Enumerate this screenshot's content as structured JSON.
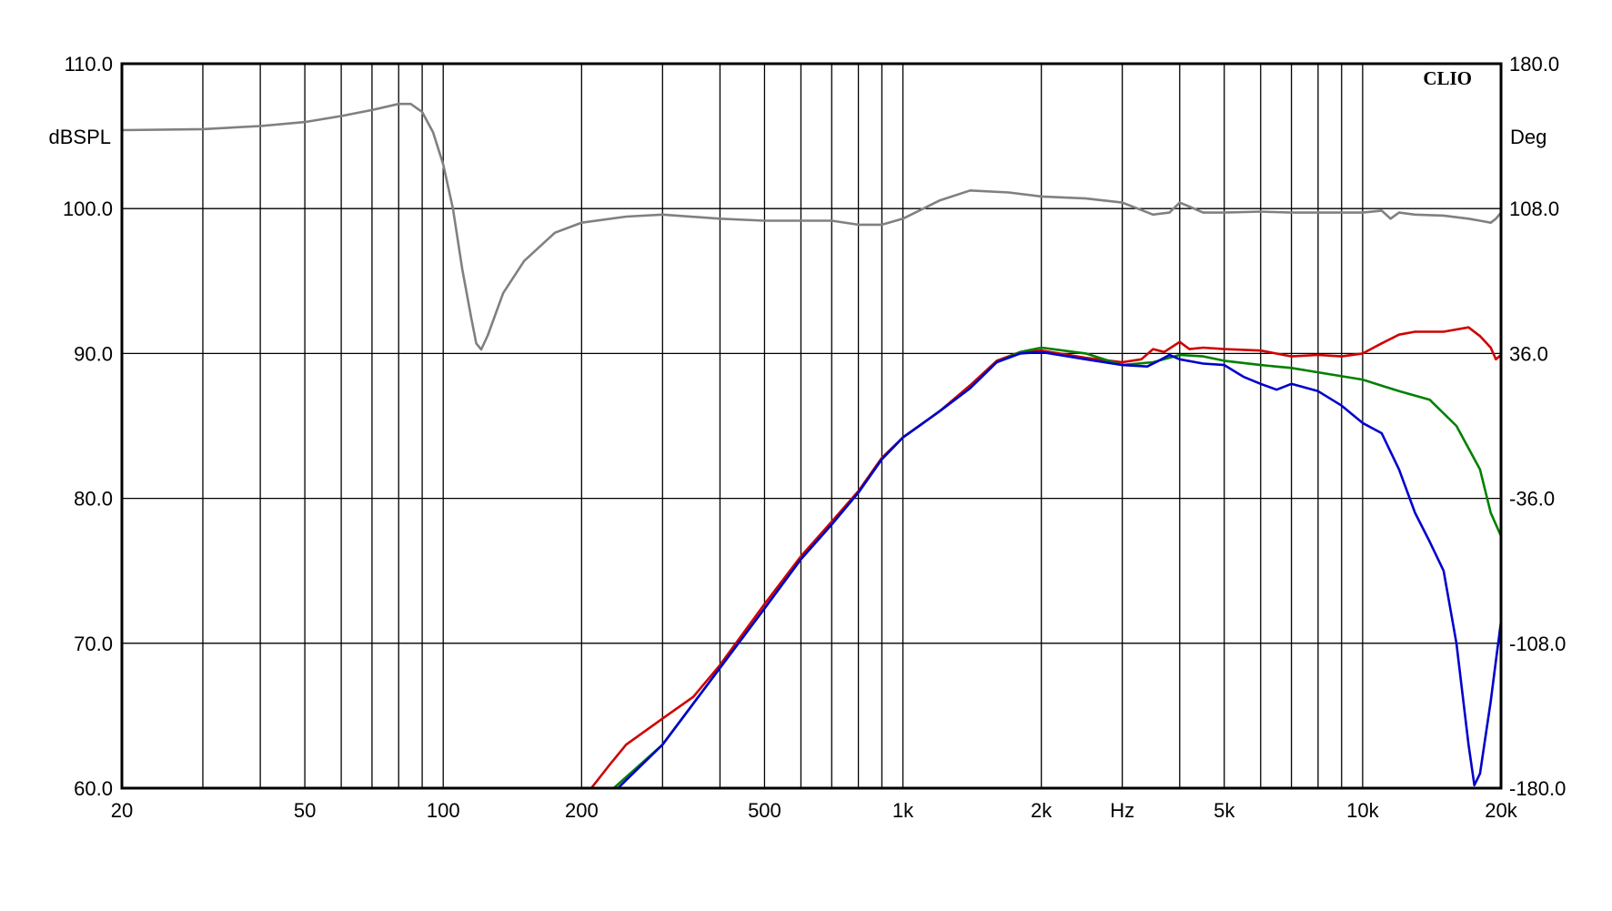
{
  "chart_data": {
    "type": "line",
    "brand": "CLIO",
    "x_scale": "log",
    "xlim": [
      20,
      20000
    ],
    "x_ticks": [
      {
        "v": 20,
        "label": "20"
      },
      {
        "v": 50,
        "label": "50"
      },
      {
        "v": 100,
        "label": "100"
      },
      {
        "v": 200,
        "label": "200"
      },
      {
        "v": 500,
        "label": "500"
      },
      {
        "v": 1000,
        "label": "1k"
      },
      {
        "v": 2000,
        "label": "2k"
      },
      {
        "v": 3000,
        "label": "Hz"
      },
      {
        "v": 5000,
        "label": "5k"
      },
      {
        "v": 10000,
        "label": "10k"
      },
      {
        "v": 20000,
        "label": "20k"
      }
    ],
    "x_gridlines": [
      20,
      30,
      40,
      50,
      60,
      70,
      80,
      90,
      100,
      200,
      300,
      400,
      500,
      600,
      700,
      800,
      900,
      1000,
      2000,
      3000,
      4000,
      5000,
      6000,
      7000,
      8000,
      9000,
      10000,
      20000
    ],
    "ylabel_left": "dBSPL",
    "ylim_left": [
      60,
      110
    ],
    "y_ticks_left": [
      "60.0",
      "70.0",
      "80.0",
      "90.0",
      "100.0",
      "110.0"
    ],
    "ylabel_right": "Deg",
    "ylim_right": [
      -180,
      180
    ],
    "y_ticks_right": [
      "-180.0",
      "-108.0",
      "-36.0",
      "36.0",
      "108.0",
      "180.0"
    ],
    "grid": true,
    "series": [
      {
        "color": "#808080",
        "axis": "right",
        "points": [
          [
            20,
            147
          ],
          [
            30,
            147.5
          ],
          [
            40,
            149
          ],
          [
            50,
            151
          ],
          [
            60,
            154
          ],
          [
            70,
            157
          ],
          [
            80,
            160
          ],
          [
            85,
            160
          ],
          [
            90,
            156
          ],
          [
            95,
            146
          ],
          [
            100,
            130
          ],
          [
            105,
            108
          ],
          [
            110,
            78
          ],
          [
            115,
            54
          ],
          [
            118,
            41
          ],
          [
            121,
            38
          ],
          [
            125,
            45
          ],
          [
            135,
            66
          ],
          [
            150,
            82
          ],
          [
            175,
            96
          ],
          [
            200,
            101
          ],
          [
            250,
            104
          ],
          [
            300,
            105
          ],
          [
            400,
            103
          ],
          [
            500,
            102
          ],
          [
            700,
            102
          ],
          [
            800,
            100
          ],
          [
            900,
            100
          ],
          [
            1000,
            103
          ],
          [
            1200,
            112
          ],
          [
            1400,
            117
          ],
          [
            1700,
            116
          ],
          [
            2000,
            114
          ],
          [
            2500,
            113
          ],
          [
            3000,
            111
          ],
          [
            3500,
            105
          ],
          [
            3800,
            106
          ],
          [
            4000,
            111
          ],
          [
            4200,
            109
          ],
          [
            4500,
            106
          ],
          [
            5000,
            106
          ],
          [
            6000,
            106.5
          ],
          [
            7000,
            106
          ],
          [
            8000,
            106
          ],
          [
            10000,
            106
          ],
          [
            11000,
            107
          ],
          [
            11500,
            103
          ],
          [
            12000,
            106
          ],
          [
            13000,
            105
          ],
          [
            15000,
            104.5
          ],
          [
            17000,
            103
          ],
          [
            18000,
            102
          ],
          [
            19000,
            101
          ],
          [
            19500,
            103
          ],
          [
            20000,
            106
          ]
        ]
      },
      {
        "color": "#d00000",
        "axis": "left",
        "points": [
          [
            210,
            60
          ],
          [
            230,
            61.6
          ],
          [
            250,
            63
          ],
          [
            300,
            64.8
          ],
          [
            350,
            66.3
          ],
          [
            400,
            68.5
          ],
          [
            500,
            72.7
          ],
          [
            600,
            76
          ],
          [
            700,
            78.4
          ],
          [
            800,
            80.5
          ],
          [
            900,
            82.8
          ],
          [
            1000,
            84.2
          ],
          [
            1200,
            86
          ],
          [
            1400,
            87.8
          ],
          [
            1600,
            89.5
          ],
          [
            1800,
            90.1
          ],
          [
            2000,
            90.2
          ],
          [
            2500,
            89.7
          ],
          [
            3000,
            89.4
          ],
          [
            3300,
            89.6
          ],
          [
            3500,
            90.3
          ],
          [
            3700,
            90.1
          ],
          [
            4000,
            90.8
          ],
          [
            4200,
            90.3
          ],
          [
            4500,
            90.4
          ],
          [
            5000,
            90.3
          ],
          [
            6000,
            90.2
          ],
          [
            7000,
            89.8
          ],
          [
            8000,
            89.9
          ],
          [
            9000,
            89.8
          ],
          [
            10000,
            90
          ],
          [
            11000,
            90.7
          ],
          [
            12000,
            91.3
          ],
          [
            13000,
            91.5
          ],
          [
            15000,
            91.5
          ],
          [
            17000,
            91.8
          ],
          [
            18000,
            91.2
          ],
          [
            19000,
            90.4
          ],
          [
            19500,
            89.6
          ],
          [
            20000,
            89.9
          ]
        ]
      },
      {
        "color": "#008000",
        "axis": "left",
        "points": [
          [
            235,
            60
          ],
          [
            300,
            63
          ],
          [
            400,
            68.3
          ],
          [
            500,
            72.4
          ],
          [
            600,
            75.8
          ],
          [
            700,
            78.2
          ],
          [
            800,
            80.4
          ],
          [
            900,
            82.7
          ],
          [
            1000,
            84.2
          ],
          [
            1200,
            86
          ],
          [
            1400,
            87.6
          ],
          [
            1600,
            89.4
          ],
          [
            1800,
            90.1
          ],
          [
            2000,
            90.4
          ],
          [
            2500,
            90
          ],
          [
            3000,
            89.2
          ],
          [
            3500,
            89.4
          ],
          [
            4000,
            89.9
          ],
          [
            4500,
            89.8
          ],
          [
            5000,
            89.5
          ],
          [
            6000,
            89.2
          ],
          [
            7000,
            89
          ],
          [
            8000,
            88.7
          ],
          [
            10000,
            88.2
          ],
          [
            12000,
            87.4
          ],
          [
            14000,
            86.8
          ],
          [
            16000,
            85
          ],
          [
            18000,
            82
          ],
          [
            19000,
            79
          ],
          [
            20000,
            77.4
          ]
        ]
      },
      {
        "color": "#0000cc",
        "axis": "left",
        "points": [
          [
            240,
            60
          ],
          [
            300,
            63
          ],
          [
            400,
            68.3
          ],
          [
            500,
            72.4
          ],
          [
            600,
            75.8
          ],
          [
            700,
            78.2
          ],
          [
            800,
            80.4
          ],
          [
            900,
            82.7
          ],
          [
            1000,
            84.2
          ],
          [
            1200,
            86
          ],
          [
            1400,
            87.6
          ],
          [
            1600,
            89.4
          ],
          [
            1800,
            90
          ],
          [
            2000,
            90.1
          ],
          [
            2500,
            89.6
          ],
          [
            3000,
            89.2
          ],
          [
            3400,
            89.1
          ],
          [
            3600,
            89.5
          ],
          [
            3800,
            89.9
          ],
          [
            4000,
            89.6
          ],
          [
            4500,
            89.3
          ],
          [
            5000,
            89.2
          ],
          [
            5500,
            88.4
          ],
          [
            6000,
            87.9
          ],
          [
            6500,
            87.5
          ],
          [
            7000,
            87.9
          ],
          [
            8000,
            87.4
          ],
          [
            9000,
            86.4
          ],
          [
            10000,
            85.2
          ],
          [
            11000,
            84.5
          ],
          [
            12000,
            82
          ],
          [
            13000,
            79
          ],
          [
            14000,
            77
          ],
          [
            15000,
            75
          ],
          [
            16000,
            70
          ],
          [
            17000,
            63
          ],
          [
            17500,
            60.2
          ],
          [
            18000,
            61
          ],
          [
            19000,
            66
          ],
          [
            19500,
            68.8
          ],
          [
            20000,
            71.5
          ]
        ]
      }
    ]
  }
}
